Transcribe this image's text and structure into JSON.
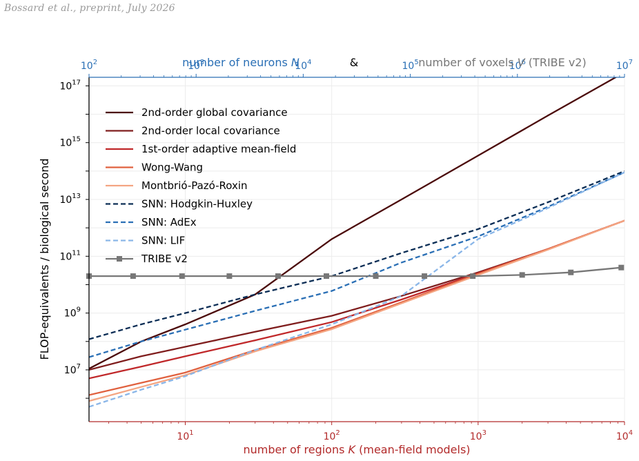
{
  "header_note": "Bossard et al., preprint, July 2026",
  "colors": {
    "bottom_axis": "#b22a2a",
    "top_axis": "#2a6fb5",
    "grey": "#777777"
  },
  "chart_data": {
    "type": "line",
    "log_x": true,
    "log_y": true,
    "xlim": [
      2.2,
      10000
    ],
    "ylim": [
      150000,
      2e+17
    ],
    "grid": true,
    "legend_position": "top-left",
    "xlabel_prefix": "number of regions",
    "xlabel_symbol": "K",
    "xlabel_suffix": "(mean-field models)",
    "ylabel": "FLOP-equivalents / biological second",
    "top_axis": {
      "label_prefix": "number of neurons",
      "label_symbol": "N",
      "joiner": "&",
      "label2_prefix": "number of voxels",
      "label2_symbol": "V",
      "label2_suffix": "(TRIBE v2)",
      "tick_exponents": [
        2,
        3,
        4,
        5,
        6,
        7
      ],
      "range": [
        100,
        10000000
      ]
    },
    "x_tick_exponents": [
      1,
      2,
      3,
      4
    ],
    "y_tick_exponents": [
      7,
      9,
      11,
      13,
      15,
      17
    ],
    "series": [
      {
        "name": "2nd-order global covariance",
        "color": "#4b0a0a",
        "dash": "solid",
        "x": [
          2.2,
          5,
          10,
          30,
          100,
          300,
          1000,
          3000,
          10000
        ],
        "y": [
          11000000.0,
          100000000.0,
          400000000.0,
          4500000000.0,
          400000000000.0,
          10000000000000.0,
          350000000000000.0,
          9000000000000000.0,
          3e+17
        ]
      },
      {
        "name": "2nd-order local covariance",
        "color": "#7f1d1d",
        "dash": "solid",
        "x": [
          2.2,
          5,
          10,
          30,
          100,
          300,
          1000,
          3000,
          10000
        ],
        "y": [
          10000000.0,
          30000000.0,
          65000000.0,
          220000000.0,
          800000000.0,
          4000000000.0,
          27000000000.0,
          180000000000.0,
          1800000000000.0
        ]
      },
      {
        "name": "1st-order adaptive mean-field",
        "color": "#c0282a",
        "dash": "solid",
        "x": [
          2.2,
          5,
          10,
          30,
          100,
          300,
          1000,
          3000,
          10000
        ],
        "y": [
          5000000.0,
          13000000.0,
          30000000.0,
          110000000.0,
          480000000.0,
          3000000000.0,
          25000000000.0,
          180000000000.0,
          1800000000000.0
        ]
      },
      {
        "name": "Wong-Wang",
        "color": "#e0613f",
        "dash": "solid",
        "x": [
          2.2,
          5,
          10,
          30,
          100,
          300,
          1000,
          3000,
          10000
        ],
        "y": [
          1300000.0,
          3500000.0,
          8000000.0,
          50000000.0,
          300000000.0,
          2400000000.0,
          24000000000.0,
          180000000000.0,
          1800000000000.0
        ]
      },
      {
        "name": "Montbrió-Pazó-Roxin",
        "color": "#f4a582",
        "dash": "solid",
        "x": [
          2.2,
          5,
          10,
          30,
          100,
          300,
          1000,
          3000,
          10000
        ],
        "y": [
          800000.0,
          2500000.0,
          6500000.0,
          45000000.0,
          270000000.0,
          2200000000.0,
          22000000000.0,
          170000000000.0,
          1800000000000.0
        ]
      },
      {
        "name": "SNN: Hodgkin-Huxley",
        "color": "#0b2d55",
        "dash": "dashed",
        "x": [
          2.2,
          5,
          10,
          30,
          100,
          300,
          1000,
          3000,
          10000
        ],
        "y": [
          120000000.0,
          400000000.0,
          1000000000.0,
          4500000000.0,
          20000000000.0,
          130000000000.0,
          900000000000.0,
          8000000000000.0,
          100000000000000.0
        ]
      },
      {
        "name": "SNN: AdEx",
        "color": "#2a6fb5",
        "dash": "dashed",
        "x": [
          2.2,
          5,
          10,
          30,
          100,
          300,
          1000,
          3000,
          10000
        ],
        "y": [
          28000000.0,
          100000000.0,
          260000000.0,
          1200000000.0,
          6000000000.0,
          60000000000.0,
          500000000000.0,
          5500000000000.0,
          90000000000000.0
        ]
      },
      {
        "name": "SNN: LIF",
        "color": "#8ab6e8",
        "dash": "dashed",
        "x": [
          2.2,
          5,
          10,
          30,
          100,
          300,
          1000,
          3000,
          10000
        ],
        "y": [
          500000.0,
          2000000.0,
          6000000.0,
          50000000.0,
          400000000.0,
          4000000000.0,
          400000000000.0,
          5000000000000.0,
          90000000000000.0
        ]
      },
      {
        "name": "TRIBE v2",
        "color": "#777777",
        "dash": "solid",
        "markers": true,
        "x": [
          2.2,
          4.4,
          9.5,
          20,
          43,
          92,
          200,
          430,
          920,
          2000,
          4300,
          9500
        ],
        "y": [
          20000000000.0,
          20000000000.0,
          20000000000.0,
          20000000000.0,
          20000000000.0,
          20000000000.0,
          20000000000.0,
          20000000000.0,
          20000000000.0,
          22000000000.0,
          27000000000.0,
          40000000000.0
        ]
      }
    ]
  }
}
